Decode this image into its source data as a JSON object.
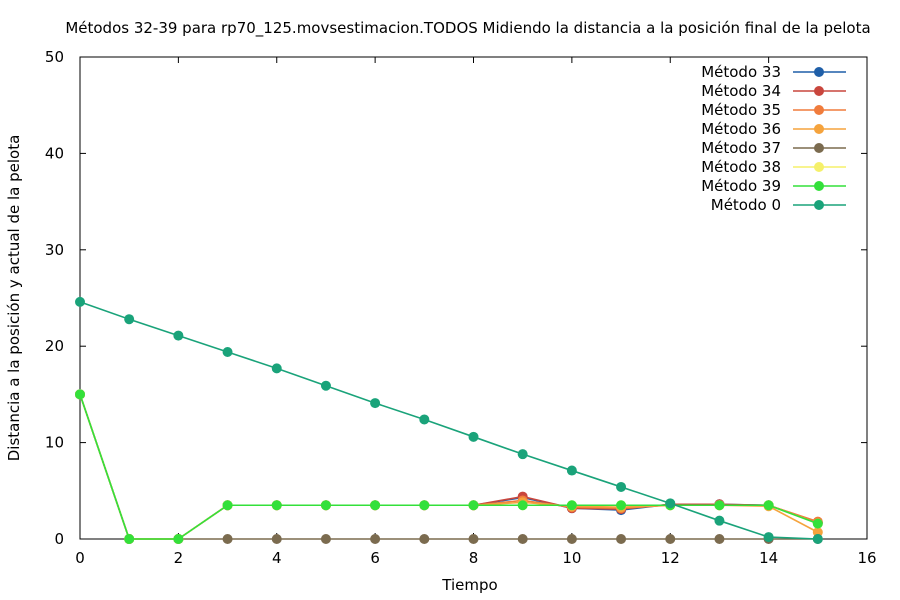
{
  "chart_data": {
    "type": "line",
    "title": "Métodos 32-39 para rp70_125.movsestimacion.TODOS Midiendo la distancia a la posición final de la pelota",
    "xlabel": "Tiempo",
    "ylabel": "Distancia a la posición y actual de la pelota",
    "xlim": [
      0,
      16
    ],
    "ylim": [
      0,
      50
    ],
    "xticks": [
      "0",
      "2",
      "4",
      "6",
      "8",
      "10",
      "12",
      "14",
      "16"
    ],
    "yticks": [
      "0",
      "10",
      "20",
      "30",
      "40",
      "50"
    ],
    "grid": false,
    "legend_position": "top-right",
    "x": [
      0,
      1,
      2,
      3,
      4,
      5,
      6,
      7,
      8,
      9,
      10,
      11,
      12,
      13,
      14,
      15
    ],
    "series": [
      {
        "name": "Método 33",
        "color": "#1f5fa8",
        "values": [
          15,
          0,
          0,
          3.5,
          3.5,
          3.5,
          3.5,
          3.5,
          3.5,
          4.3,
          3.2,
          3.0,
          3.6,
          3.6,
          3.5,
          1.7
        ]
      },
      {
        "name": "Método 34",
        "color": "#c9463d",
        "values": [
          15,
          0,
          0,
          3.5,
          3.5,
          3.5,
          3.5,
          3.5,
          3.5,
          4.4,
          3.2,
          3.1,
          3.6,
          3.6,
          3.5,
          1.7
        ]
      },
      {
        "name": "Método 35",
        "color": "#f07c3c",
        "values": [
          15,
          0,
          0,
          3.5,
          3.5,
          3.5,
          3.5,
          3.5,
          3.5,
          4.0,
          3.3,
          3.2,
          3.5,
          3.5,
          3.5,
          1.8
        ]
      },
      {
        "name": "Método 36",
        "color": "#f5a33d",
        "values": [
          15,
          0,
          0,
          3.5,
          3.5,
          3.5,
          3.5,
          3.5,
          3.5,
          3.8,
          3.4,
          3.3,
          3.5,
          3.5,
          3.4,
          0.7
        ]
      },
      {
        "name": "Método 37",
        "color": "#7b6b4f",
        "values": [
          15,
          0,
          0,
          0,
          0,
          0,
          0,
          0,
          0,
          0,
          0,
          0,
          0,
          0,
          0,
          0
        ]
      },
      {
        "name": "Método 38",
        "color": "#f5f06a",
        "values": [
          15,
          0,
          0,
          3.5,
          3.5,
          3.5,
          3.5,
          3.5,
          3.5,
          3.5,
          3.5,
          3.5,
          3.5,
          3.5,
          3.5,
          1.6
        ]
      },
      {
        "name": "Método 39",
        "color": "#33e03a",
        "values": [
          15,
          0,
          0,
          3.5,
          3.5,
          3.5,
          3.5,
          3.5,
          3.5,
          3.5,
          3.5,
          3.5,
          3.5,
          3.5,
          3.5,
          1.6
        ]
      },
      {
        "name": "Método 0",
        "color": "#1aa37a",
        "values": [
          24.6,
          22.8,
          21.1,
          19.4,
          17.7,
          15.9,
          14.1,
          12.4,
          10.6,
          8.8,
          7.1,
          5.4,
          3.7,
          1.9,
          0.2,
          0
        ]
      }
    ]
  }
}
